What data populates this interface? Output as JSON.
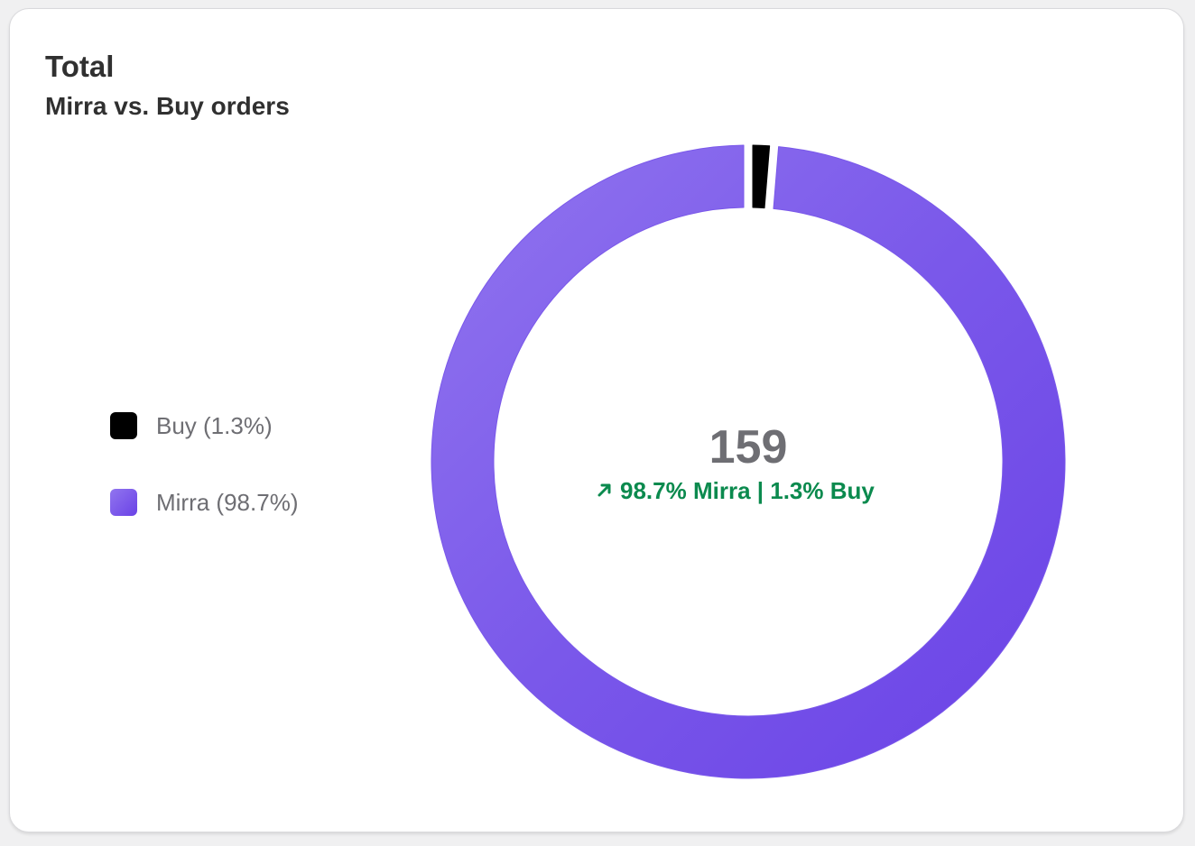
{
  "card": {
    "title": "Total",
    "subtitle": "Mirra vs. Buy orders"
  },
  "chart_data": {
    "type": "pie",
    "variant": "donut",
    "start_angle_deg": 0,
    "direction": "clockwise",
    "series": [
      {
        "name": "Buy",
        "value": 1.3,
        "color": "#000000"
      },
      {
        "name": "Mirra",
        "value": 98.7,
        "color": "#7b56ea"
      }
    ],
    "legend": {
      "placement": "left",
      "items": [
        {
          "label": "Buy (1.3%)",
          "color": "#000000"
        },
        {
          "label": "Mirra (98.7%)",
          "color": "#7f5af0"
        }
      ]
    },
    "center": {
      "value": "159",
      "trend_icon": "arrow-up-right-icon",
      "trend_text": "98.7% Mirra | 1.3% Buy",
      "trend_color": "#0b8a4e"
    }
  }
}
